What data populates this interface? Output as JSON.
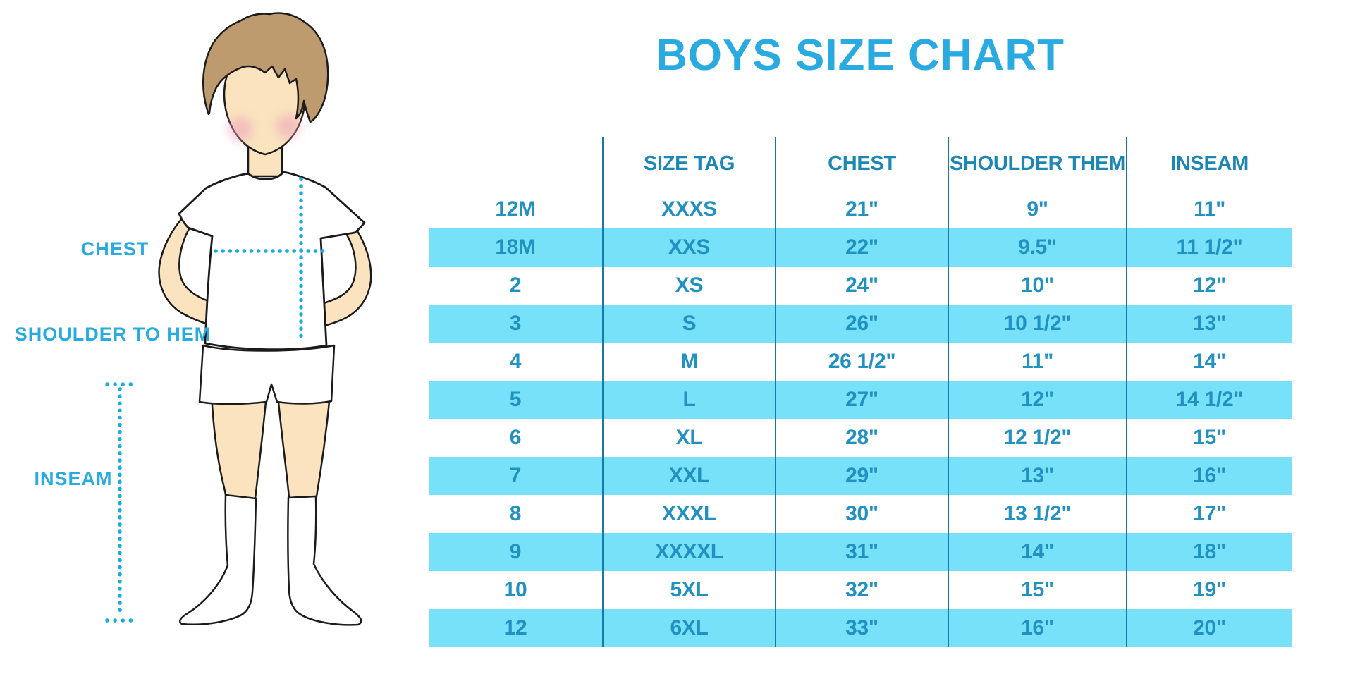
{
  "title": "BOYS SIZE CHART",
  "figure": {
    "labels": {
      "chest": "CHEST",
      "shoulder_to_hem": "SHOULDER TO HEM",
      "inseam": "INSEAM"
    }
  },
  "chart_data": {
    "type": "table",
    "title": "BOYS SIZE CHART",
    "headers": [
      "",
      "SIZE TAG",
      "CHEST",
      "SHOULDER THEM",
      "INSEAM"
    ],
    "rows": [
      [
        "12M",
        "XXXS",
        "21\"",
        "9\"",
        "11\""
      ],
      [
        "18M",
        "XXS",
        "22\"",
        "9.5\"",
        "11 1/2\""
      ],
      [
        "2",
        "XS",
        "24\"",
        "10\"",
        "12\""
      ],
      [
        "3",
        "S",
        "26\"",
        "10 1/2\"",
        "13\""
      ],
      [
        "4",
        "M",
        "26 1/2\"",
        "11\"",
        "14\""
      ],
      [
        "5",
        "L",
        "27\"",
        "12\"",
        "14 1/2\""
      ],
      [
        "6",
        "XL",
        "28\"",
        "12 1/2\"",
        "15\""
      ],
      [
        "7",
        "XXL",
        "29\"",
        "13\"",
        "16\""
      ],
      [
        "8",
        "XXXL",
        "30\"",
        "13 1/2\"",
        "17\""
      ],
      [
        "9",
        "XXXXL",
        "31\"",
        "14\"",
        "18\""
      ],
      [
        "10",
        "5XL",
        "32\"",
        "15\"",
        "19\""
      ],
      [
        "12",
        "6XL",
        "33\"",
        "16\"",
        "20\""
      ]
    ],
    "layout": {
      "striped": true,
      "header_background": "#76E1F9",
      "stripe_background": "#76E1F9",
      "grid": "vertical-dividers-only"
    }
  },
  "colors": {
    "accent_blue": "#29ABE2",
    "table_text": "#2191C1",
    "header_text": "#1C86B5",
    "stripe_cyan": "#76E1F9",
    "divider": "#1878A8",
    "dotted_measure": "#16AEE2",
    "hair": "#BD9B6F",
    "skin": "#FAE3BE",
    "cheek": "#F0A5BC",
    "outline": "#1b1b1b"
  }
}
